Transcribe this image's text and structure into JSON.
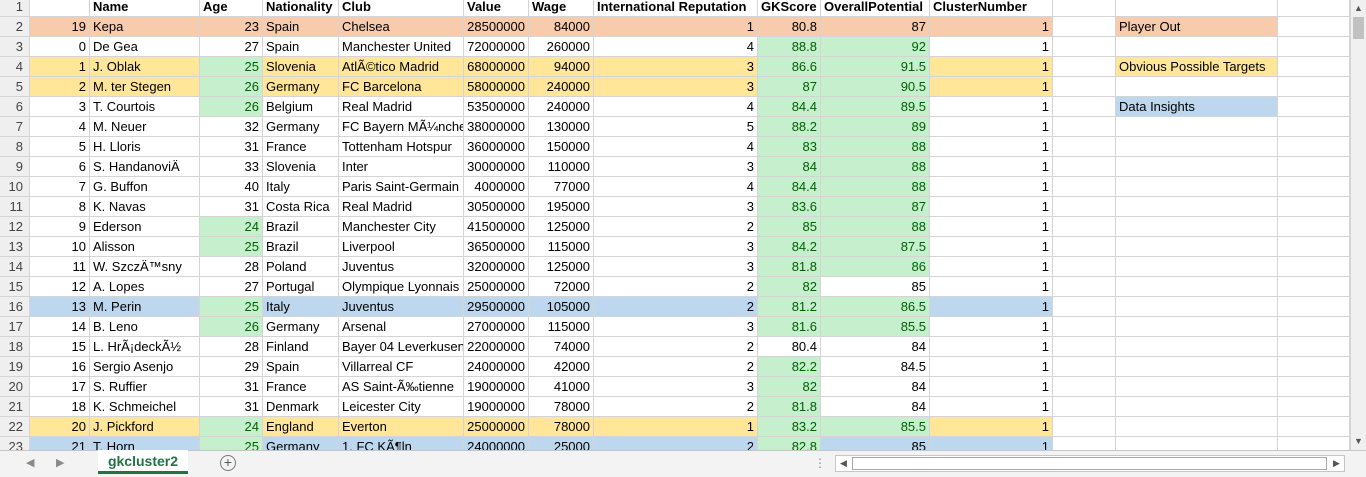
{
  "columns": [
    "",
    "Name",
    "Age",
    "Nationality",
    "Club",
    "Value",
    "Wage",
    "International Reputation",
    "GKScore",
    "OverallPotential",
    "ClusterNumber"
  ],
  "rows": [
    {
      "rownum": "2",
      "fill": "player",
      "cells": [
        "19",
        "Kepa",
        "23",
        "Spain",
        "Chelsea",
        "28500000",
        "84000",
        "1",
        "80.8",
        "87",
        "1"
      ],
      "greens": []
    },
    {
      "rownum": "3",
      "fill": "",
      "cells": [
        "0",
        "De Gea",
        "27",
        "Spain",
        "Manchester United",
        "72000000",
        "260000",
        "4",
        "88.8",
        "92",
        "1"
      ],
      "greens": [
        8,
        9
      ]
    },
    {
      "rownum": "4",
      "fill": "target",
      "cells": [
        "1",
        "J. Oblak",
        "25",
        "Slovenia",
        "AtlÃ©tico Madrid",
        "68000000",
        "94000",
        "3",
        "86.6",
        "91.5",
        "1"
      ],
      "greens": [
        2,
        8,
        9
      ]
    },
    {
      "rownum": "5",
      "fill": "target",
      "cells": [
        "2",
        "M. ter Stegen",
        "26",
        "Germany",
        "FC Barcelona",
        "58000000",
        "240000",
        "3",
        "87",
        "90.5",
        "1"
      ],
      "greens": [
        2,
        8,
        9
      ]
    },
    {
      "rownum": "6",
      "fill": "",
      "cells": [
        "3",
        "T. Courtois",
        "26",
        "Belgium",
        "Real Madrid",
        "53500000",
        "240000",
        "4",
        "84.4",
        "89.5",
        "1"
      ],
      "greens": [
        2,
        8,
        9
      ]
    },
    {
      "rownum": "7",
      "fill": "",
      "cells": [
        "4",
        "M. Neuer",
        "32",
        "Germany",
        "FC Bayern MÃ¼nchen",
        "38000000",
        "130000",
        "5",
        "88.2",
        "89",
        "1"
      ],
      "greens": [
        8,
        9
      ]
    },
    {
      "rownum": "8",
      "fill": "",
      "cells": [
        "5",
        "H. Lloris",
        "31",
        "France",
        "Tottenham Hotspur",
        "36000000",
        "150000",
        "4",
        "83",
        "88",
        "1"
      ],
      "greens": [
        8,
        9
      ]
    },
    {
      "rownum": "9",
      "fill": "",
      "cells": [
        "6",
        "S. HandanoviÄ",
        "33",
        "Slovenia",
        "Inter",
        "30000000",
        "110000",
        "3",
        "84",
        "88",
        "1"
      ],
      "greens": [
        8,
        9
      ]
    },
    {
      "rownum": "10",
      "fill": "",
      "cells": [
        "7",
        "G. Buffon",
        "40",
        "Italy",
        "Paris Saint-Germain",
        "4000000",
        "77000",
        "4",
        "84.4",
        "88",
        "1"
      ],
      "greens": [
        8,
        9
      ]
    },
    {
      "rownum": "11",
      "fill": "",
      "cells": [
        "8",
        "K. Navas",
        "31",
        "Costa Rica",
        "Real Madrid",
        "30500000",
        "195000",
        "3",
        "83.6",
        "87",
        "1"
      ],
      "greens": [
        8,
        9
      ]
    },
    {
      "rownum": "12",
      "fill": "",
      "cells": [
        "9",
        "Ederson",
        "24",
        "Brazil",
        "Manchester City",
        "41500000",
        "125000",
        "2",
        "85",
        "88",
        "1"
      ],
      "greens": [
        2,
        8,
        9
      ]
    },
    {
      "rownum": "13",
      "fill": "",
      "cells": [
        "10",
        "Alisson",
        "25",
        "Brazil",
        "Liverpool",
        "36500000",
        "115000",
        "3",
        "84.2",
        "87.5",
        "1"
      ],
      "greens": [
        2,
        8,
        9
      ]
    },
    {
      "rownum": "14",
      "fill": "",
      "cells": [
        "11",
        "W. SzczÄ™sny",
        "28",
        "Poland",
        "Juventus",
        "32000000",
        "125000",
        "3",
        "81.8",
        "86",
        "1"
      ],
      "greens": [
        8,
        9
      ]
    },
    {
      "rownum": "15",
      "fill": "",
      "cells": [
        "12",
        "A. Lopes",
        "27",
        "Portugal",
        "Olympique Lyonnais",
        "25000000",
        "72000",
        "2",
        "82",
        "85",
        "1"
      ],
      "greens": [
        8
      ]
    },
    {
      "rownum": "16",
      "fill": "insight",
      "cells": [
        "13",
        "M. Perin",
        "25",
        "Italy",
        "Juventus",
        "29500000",
        "105000",
        "2",
        "81.2",
        "86.5",
        "1"
      ],
      "greens": [
        2,
        8,
        9
      ]
    },
    {
      "rownum": "17",
      "fill": "",
      "cells": [
        "14",
        "B. Leno",
        "26",
        "Germany",
        "Arsenal",
        "27000000",
        "115000",
        "3",
        "81.6",
        "85.5",
        "1"
      ],
      "greens": [
        2,
        8,
        9
      ]
    },
    {
      "rownum": "18",
      "fill": "",
      "cells": [
        "15",
        "L. HrÃ¡deckÃ½",
        "28",
        "Finland",
        "Bayer 04 Leverkusen",
        "22000000",
        "74000",
        "2",
        "80.4",
        "84",
        "1"
      ],
      "greens": []
    },
    {
      "rownum": "19",
      "fill": "",
      "cells": [
        "16",
        "Sergio Asenjo",
        "29",
        "Spain",
        "Villarreal CF",
        "24000000",
        "42000",
        "2",
        "82.2",
        "84.5",
        "1"
      ],
      "greens": [
        8
      ]
    },
    {
      "rownum": "20",
      "fill": "",
      "cells": [
        "17",
        "S. Ruffier",
        "31",
        "France",
        "AS Saint-Ã‰tienne",
        "19000000",
        "41000",
        "3",
        "82",
        "84",
        "1"
      ],
      "greens": [
        8
      ]
    },
    {
      "rownum": "21",
      "fill": "",
      "cells": [
        "18",
        "K. Schmeichel",
        "31",
        "Denmark",
        "Leicester City",
        "19000000",
        "78000",
        "2",
        "81.8",
        "84",
        "1"
      ],
      "greens": [
        8
      ]
    },
    {
      "rownum": "22",
      "fill": "target",
      "cells": [
        "20",
        "J. Pickford",
        "24",
        "England",
        "Everton",
        "25000000",
        "78000",
        "1",
        "83.2",
        "85.5",
        "1"
      ],
      "greens": [
        2,
        8,
        9
      ]
    },
    {
      "rownum": "23",
      "fill": "insight",
      "cells": [
        "21",
        "T. Horn",
        "25",
        "Germany",
        "1. FC KÃ¶ln",
        "24000000",
        "25000",
        "2",
        "82.8",
        "85",
        "1"
      ],
      "greens": [
        2,
        8
      ]
    }
  ],
  "legend": {
    "player_out": "Player Out",
    "targets": "Obvious Possible Targets",
    "insights": "Data Insights"
  },
  "sheet_tab": "gkcluster2",
  "add_sheet_symbol": "+",
  "colors": {
    "player_out": "#f8cbad",
    "targets": "#ffe699",
    "insights": "#bdd7ee",
    "good": "#c6efce",
    "good_text": "#006100",
    "accent": "#217346"
  }
}
